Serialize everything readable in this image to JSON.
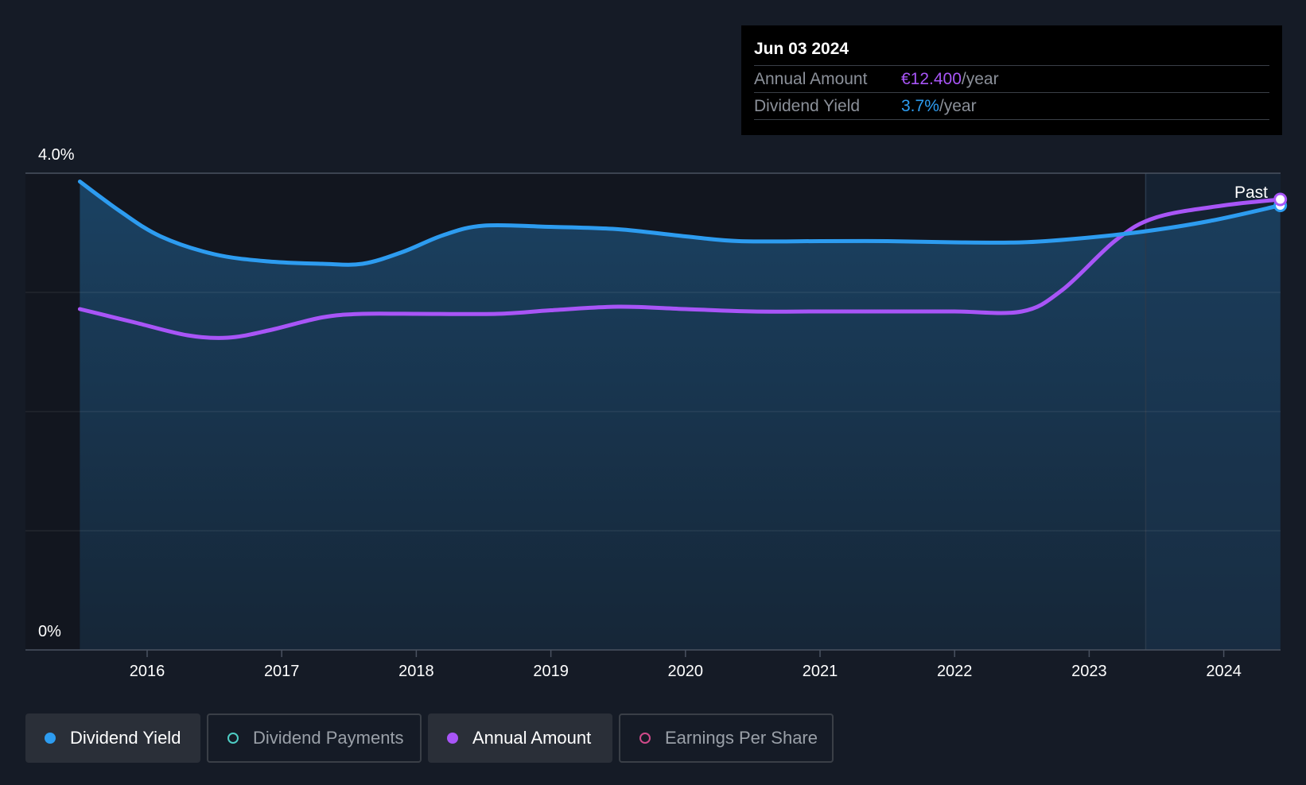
{
  "tooltip": {
    "date": "Jun 03 2024",
    "rows": [
      {
        "label": "Annual Amount",
        "value": "€12.400",
        "unit": "/year"
      },
      {
        "label": "Dividend Yield",
        "value": "3.7%",
        "unit": "/year"
      }
    ]
  },
  "legend": [
    {
      "label": "Dividend Yield",
      "color": "#2d9cf0",
      "active": true
    },
    {
      "label": "Dividend Payments",
      "color": "#4ecdc4",
      "active": false
    },
    {
      "label": "Annual Amount",
      "color": "#a855f7",
      "active": true
    },
    {
      "label": "Earnings Per Share",
      "color": "#d04a8a",
      "active": false
    }
  ],
  "chart_data": {
    "type": "line",
    "x_ticks": [
      "2016",
      "2017",
      "2018",
      "2019",
      "2020",
      "2021",
      "2022",
      "2023",
      "2024"
    ],
    "y_ticks": [
      "4.0%",
      "0%"
    ],
    "ylim": [
      0,
      4.0
    ],
    "past_label": "Past",
    "series": [
      {
        "name": "Dividend Yield",
        "color": "#2d9cf0",
        "axis": "yield",
        "points": [
          [
            2015.5,
            3.93
          ],
          [
            2015.8,
            3.68
          ],
          [
            2016.1,
            3.47
          ],
          [
            2016.5,
            3.32
          ],
          [
            2016.9,
            3.26
          ],
          [
            2017.3,
            3.24
          ],
          [
            2017.6,
            3.24
          ],
          [
            2017.9,
            3.34
          ],
          [
            2018.2,
            3.48
          ],
          [
            2018.5,
            3.56
          ],
          [
            2019.0,
            3.55
          ],
          [
            2019.5,
            3.53
          ],
          [
            2020.0,
            3.47
          ],
          [
            2020.4,
            3.43
          ],
          [
            2021.0,
            3.43
          ],
          [
            2021.5,
            3.43
          ],
          [
            2022.0,
            3.42
          ],
          [
            2022.5,
            3.42
          ],
          [
            2022.9,
            3.45
          ],
          [
            2023.4,
            3.51
          ],
          [
            2023.9,
            3.6
          ],
          [
            2024.42,
            3.73
          ]
        ]
      },
      {
        "name": "Annual Amount",
        "color": "#a855f7",
        "axis": "amount",
        "points": [
          [
            2015.5,
            2.86
          ],
          [
            2015.9,
            2.75
          ],
          [
            2016.3,
            2.64
          ],
          [
            2016.6,
            2.62
          ],
          [
            2016.9,
            2.68
          ],
          [
            2017.3,
            2.79
          ],
          [
            2017.6,
            2.82
          ],
          [
            2018.0,
            2.82
          ],
          [
            2018.6,
            2.82
          ],
          [
            2019.0,
            2.85
          ],
          [
            2019.5,
            2.88
          ],
          [
            2020.0,
            2.86
          ],
          [
            2020.5,
            2.84
          ],
          [
            2021.0,
            2.84
          ],
          [
            2021.5,
            2.84
          ],
          [
            2022.0,
            2.84
          ],
          [
            2022.5,
            2.84
          ],
          [
            2022.8,
            3.02
          ],
          [
            2023.2,
            3.44
          ],
          [
            2023.5,
            3.63
          ],
          [
            2024.0,
            3.73
          ],
          [
            2024.42,
            3.78
          ]
        ]
      }
    ]
  }
}
